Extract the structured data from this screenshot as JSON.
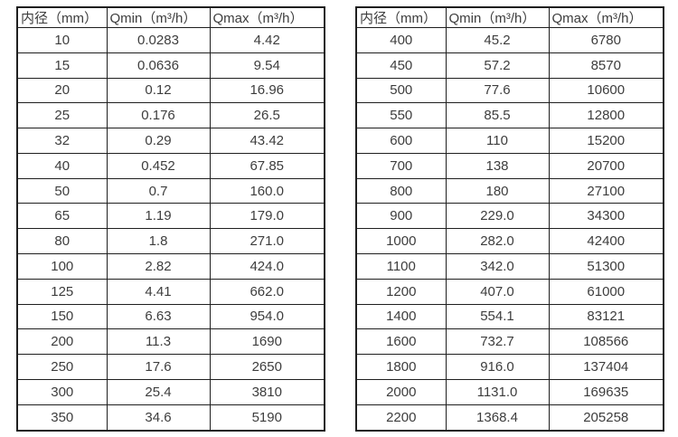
{
  "colors": {
    "border": "#1f1f1f",
    "text": "#3d3d3d",
    "background": "#ffffff"
  },
  "tables": [
    {
      "id": "small-diameters",
      "columns": [
        "内径（mm）",
        "Qmin（m³/h）",
        "Qmax（m³/h）"
      ],
      "rows": [
        [
          "10",
          "0.0283",
          "4.42"
        ],
        [
          "15",
          "0.0636",
          "9.54"
        ],
        [
          "20",
          "0.12",
          "16.96"
        ],
        [
          "25",
          "0.176",
          "26.5"
        ],
        [
          "32",
          "0.29",
          "43.42"
        ],
        [
          "40",
          "0.452",
          "67.85"
        ],
        [
          "50",
          "0.7",
          "160.0"
        ],
        [
          "65",
          "1.19",
          "179.0"
        ],
        [
          "80",
          "1.8",
          "271.0"
        ],
        [
          "100",
          "2.82",
          "424.0"
        ],
        [
          "125",
          "4.41",
          "662.0"
        ],
        [
          "150",
          "6.63",
          "954.0"
        ],
        [
          "200",
          "11.3",
          "1690"
        ],
        [
          "250",
          "17.6",
          "2650"
        ],
        [
          "300",
          "25.4",
          "3810"
        ],
        [
          "350",
          "34.6",
          "5190"
        ]
      ]
    },
    {
      "id": "large-diameters",
      "columns": [
        "内径（mm）",
        "Qmin（m³/h）",
        "Qmax（m³/h）"
      ],
      "rows": [
        [
          "400",
          "45.2",
          "6780"
        ],
        [
          "450",
          "57.2",
          "8570"
        ],
        [
          "500",
          "77.6",
          "10600"
        ],
        [
          "550",
          "85.5",
          "12800"
        ],
        [
          "600",
          "110",
          "15200"
        ],
        [
          "700",
          "138",
          "20700"
        ],
        [
          "800",
          "180",
          "27100"
        ],
        [
          "900",
          "229.0",
          "34300"
        ],
        [
          "1000",
          "282.0",
          "42400"
        ],
        [
          "1100",
          "342.0",
          "51300"
        ],
        [
          "1200",
          "407.0",
          "61000"
        ],
        [
          "1400",
          "554.1",
          "83121"
        ],
        [
          "1600",
          "732.7",
          "108566"
        ],
        [
          "1800",
          "916.0",
          "137404"
        ],
        [
          "2000",
          "1131.0",
          "169635"
        ],
        [
          "2200",
          "1368.4",
          "205258"
        ]
      ]
    }
  ]
}
